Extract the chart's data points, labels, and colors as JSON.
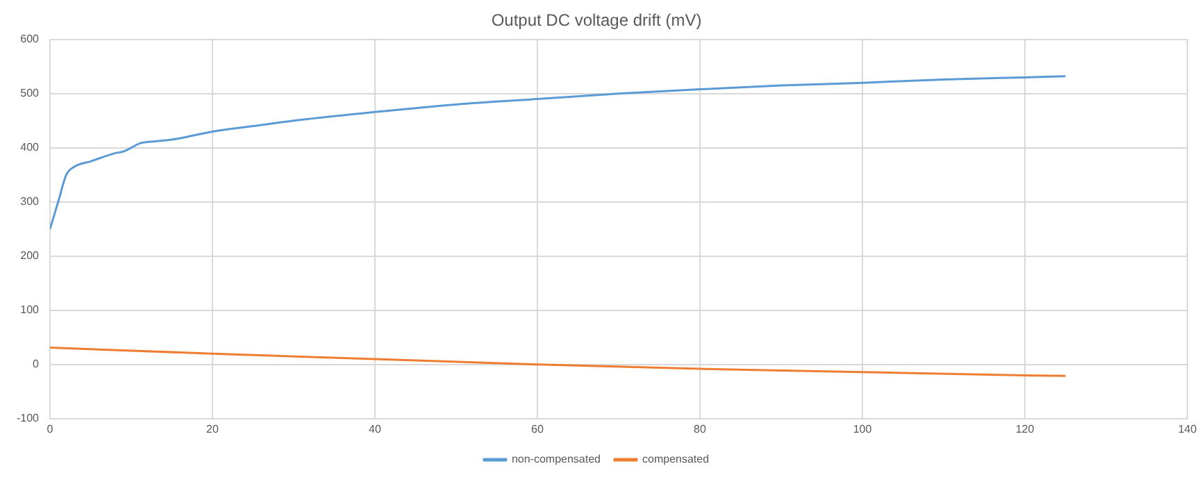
{
  "chart_data": {
    "type": "line",
    "title": "Output DC voltage drift (mV)",
    "xlim": [
      0,
      140
    ],
    "xticks": [
      0,
      20,
      40,
      60,
      80,
      100,
      120,
      140
    ],
    "ylim": [
      -100,
      600
    ],
    "yticks": [
      -100,
      0,
      100,
      200,
      300,
      400,
      500,
      600
    ],
    "grid": true,
    "legend": "bottom",
    "marker": "none",
    "line_style": "solid",
    "series": [
      {
        "name": "non-compensated",
        "color": "#5b9bd5",
        "x": [
          0,
          1,
          2,
          3,
          5,
          8,
          9,
          10,
          11,
          13,
          15,
          20,
          25,
          30,
          40,
          50,
          60,
          70,
          80,
          90,
          100,
          110,
          120,
          125
        ],
        "values": [
          250,
          300,
          350,
          365,
          375,
          390,
          393,
          400,
          408,
          412,
          415,
          430,
          440,
          450,
          466,
          480,
          490,
          500,
          508,
          515,
          520,
          526,
          530,
          532
        ]
      },
      {
        "name": "compensated",
        "color": "#ed7d31",
        "x": [
          0,
          20,
          40,
          60,
          80,
          100,
          120,
          125
        ],
        "values": [
          31,
          20,
          10,
          0,
          -8,
          -14,
          -20,
          -21
        ]
      }
    ]
  }
}
